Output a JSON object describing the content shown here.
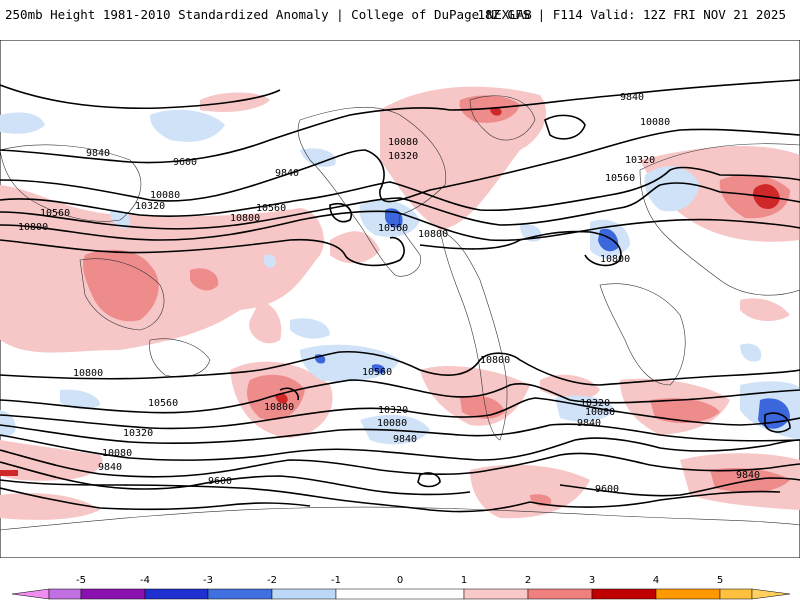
{
  "header": {
    "left_title": "250mb Height 1981-2010 Standardized Anomaly | College of DuPage NEXLAB",
    "right_title": "18Z GFS | F114 Valid: 12Z FRI NOV 21 2025"
  },
  "contour_labels": [
    "9840",
    "9600",
    "9840",
    "10080",
    "10320",
    "10560",
    "10800",
    "10080",
    "10320",
    "10560",
    "10800",
    "10560",
    "10800",
    "9840",
    "10080",
    "10560",
    "10320",
    "10800",
    "10800",
    "10560",
    "10800",
    "10560",
    "10800",
    "10320",
    "10080",
    "9840",
    "10320",
    "10080",
    "9840",
    "10320",
    "10080",
    "9840",
    "9600",
    "9600",
    "9840"
  ],
  "colorbar": {
    "ticks": [
      "-5",
      "-4",
      "-3",
      "-2",
      "-1",
      "0",
      "1",
      "2",
      "3",
      "4",
      "5"
    ],
    "colors": [
      "#e0e0ff",
      "#9b30c8",
      "#6f0fa0",
      "#1f2fd0",
      "#3a6fe0",
      "#bcd8f7",
      "#ffffff",
      "#f9c8c8",
      "#f08080",
      "#e03838",
      "#b00000",
      "#ff9900",
      "#ffbe40"
    ]
  }
}
